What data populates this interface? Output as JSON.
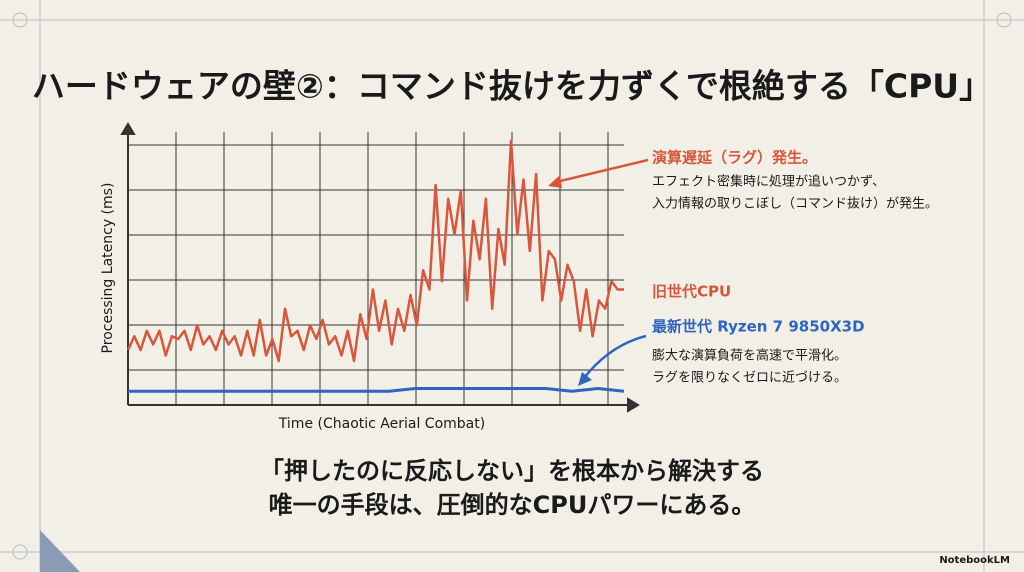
{
  "title": "ハードウェアの壁②：コマンド抜けを力ずくで根絶する「CPU」",
  "chart_data": {
    "type": "line",
    "x_label": "Time (Chaotic Aerial Combat)",
    "y_label": "Processing Latency (ms)",
    "ylim": [
      0,
      100
    ],
    "series": [
      {
        "name": "旧世代CPU",
        "color": "#d9553b",
        "values": [
          20,
          25,
          20,
          27,
          22,
          27,
          18,
          25,
          24,
          27,
          20,
          29,
          22,
          25,
          20,
          27,
          22,
          25,
          18,
          27,
          18,
          31,
          18,
          24,
          16,
          35,
          25,
          27,
          20,
          29,
          24,
          31,
          22,
          25,
          18,
          27,
          16,
          33,
          24,
          42,
          27,
          38,
          22,
          35,
          27,
          40,
          29,
          49,
          42,
          80,
          45,
          75,
          62,
          78,
          38,
          67,
          53,
          75,
          35,
          64,
          51,
          96,
          62,
          82,
          56,
          84,
          38,
          56,
          53,
          38,
          51,
          45,
          27,
          42,
          25,
          38,
          35,
          45,
          42,
          42
        ]
      },
      {
        "name": "最新世代 Ryzen 7 9850X3D",
        "color": "#2f64c0",
        "values": [
          5,
          5,
          5,
          5,
          5,
          5,
          5,
          5,
          5,
          5,
          5,
          6,
          6,
          6,
          6,
          6,
          6,
          5,
          6,
          5
        ]
      }
    ],
    "annotations": {
      "lag_title": "演算遅延（ラグ）発生。",
      "lag_text": [
        "エフェクト密集時に処理が追いつかず、",
        "入力情報の取りこぼし（コマンド抜け）が発生。"
      ],
      "new_text": [
        "膨大な演算負荷を高速で平滑化。",
        "ラグを限りなくゼロに近づける。"
      ]
    }
  },
  "conclusion": [
    "「押したのに反応しない」を根本から解決する",
    "唯一の手段は、圧倒的なCPUパワーにある。"
  ],
  "branding": "NotebookLM"
}
